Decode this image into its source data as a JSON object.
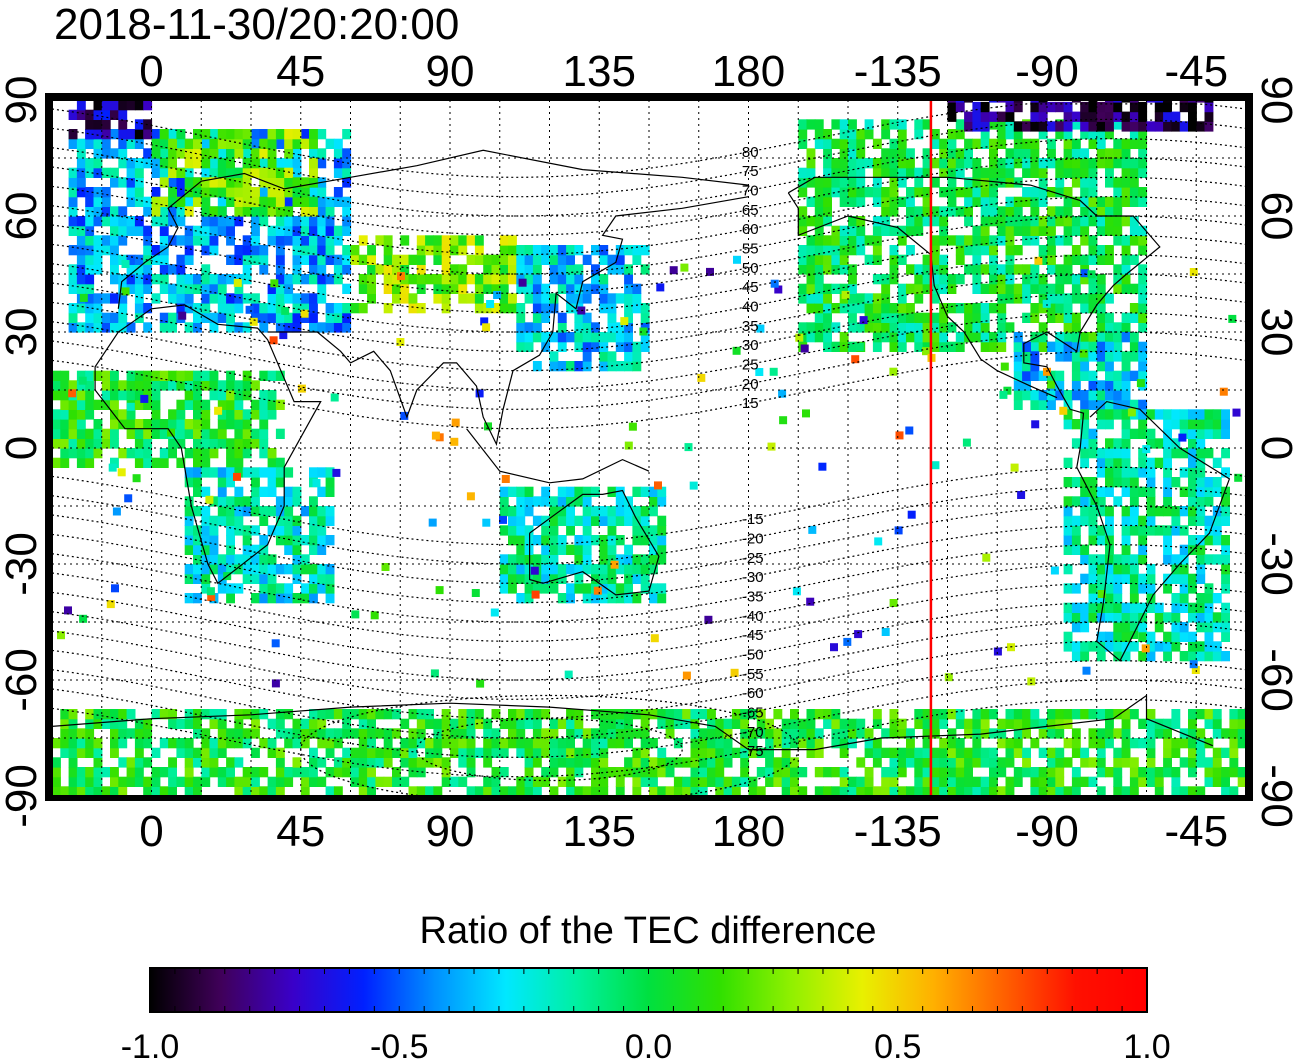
{
  "timestamp": "2018-11-30/20:20:00",
  "map": {
    "projection": "equirectangular",
    "lon_range": [
      -30,
      330
    ],
    "lat_range": [
      -90,
      90
    ],
    "terminator_longitude": -125,
    "terminator_color": "#ff0000",
    "lon_ticks_top": [
      "0",
      "45",
      "90",
      "135",
      "180",
      "-135",
      "-90",
      "-45"
    ],
    "lon_ticks_bottom": [
      "0",
      "45",
      "90",
      "135",
      "180",
      "-135",
      "-90",
      "-45"
    ],
    "lat_ticks_left": [
      "90",
      "60",
      "30",
      "0",
      "-30",
      "-60",
      "-90"
    ],
    "lat_ticks_right": [
      "90",
      "60",
      "30",
      "0",
      "-30",
      "-60",
      "-90"
    ],
    "magnetic_lat_labels": [
      "80",
      "75",
      "70",
      "65",
      "60",
      "55",
      "50",
      "45",
      "40",
      "35",
      "30",
      "25",
      "20",
      "15",
      "-15",
      "-20",
      "-25",
      "-30",
      "-35",
      "-40",
      "-45",
      "-50",
      "-55",
      "-60",
      "-65",
      "-70",
      "-75"
    ],
    "grid": "dotted"
  },
  "colorbar": {
    "title": "Ratio of the TEC difference",
    "min": -1.0,
    "max": 1.0,
    "tick_labels": [
      "-1.0",
      "-0.5",
      "0.0",
      "0.5",
      "1.0"
    ],
    "colors": [
      "#000000",
      "#40005a",
      "#3a00c8",
      "#0020ff",
      "#0090ff",
      "#00e8ff",
      "#00f0a0",
      "#00e040",
      "#30e000",
      "#90f000",
      "#e8f000",
      "#ffb000",
      "#ff6000",
      "#ff1000",
      "#ff0000"
    ]
  },
  "regions": [
    {
      "lon": [
        -25,
        60
      ],
      "lat": [
        30,
        82
      ],
      "value": -0.35
    },
    {
      "lon": [
        0,
        50
      ],
      "lat": [
        60,
        82
      ],
      "value": 0.2
    },
    {
      "lon": [
        60,
        110
      ],
      "lat": [
        35,
        55
      ],
      "value": 0.25
    },
    {
      "lon": [
        110,
        150
      ],
      "lat": [
        20,
        52
      ],
      "value": -0.3
    },
    {
      "lon": [
        105,
        155
      ],
      "lat": [
        -40,
        -10
      ],
      "value": -0.15
    },
    {
      "lon": [
        -30,
        40
      ],
      "lat": [
        -5,
        20
      ],
      "value": 0.05
    },
    {
      "lon": [
        10,
        55
      ],
      "lat": [
        -40,
        -5
      ],
      "value": -0.2
    },
    {
      "lon": [
        -165,
        -60
      ],
      "lat": [
        25,
        85
      ],
      "value": 0.0
    },
    {
      "lon": [
        -100,
        -60
      ],
      "lat": [
        10,
        30
      ],
      "value": -0.3
    },
    {
      "lon": [
        -85,
        -35
      ],
      "lat": [
        -55,
        10
      ],
      "value": -0.15
    },
    {
      "lon": [
        -30,
        330
      ],
      "lat": [
        -90,
        -68
      ],
      "value": 0.05
    },
    {
      "lon": [
        -120,
        -40
      ],
      "lat": [
        82,
        90
      ],
      "value": -0.85
    },
    {
      "lon": [
        -25,
        0
      ],
      "lat": [
        80,
        90
      ],
      "value": -0.8
    }
  ]
}
